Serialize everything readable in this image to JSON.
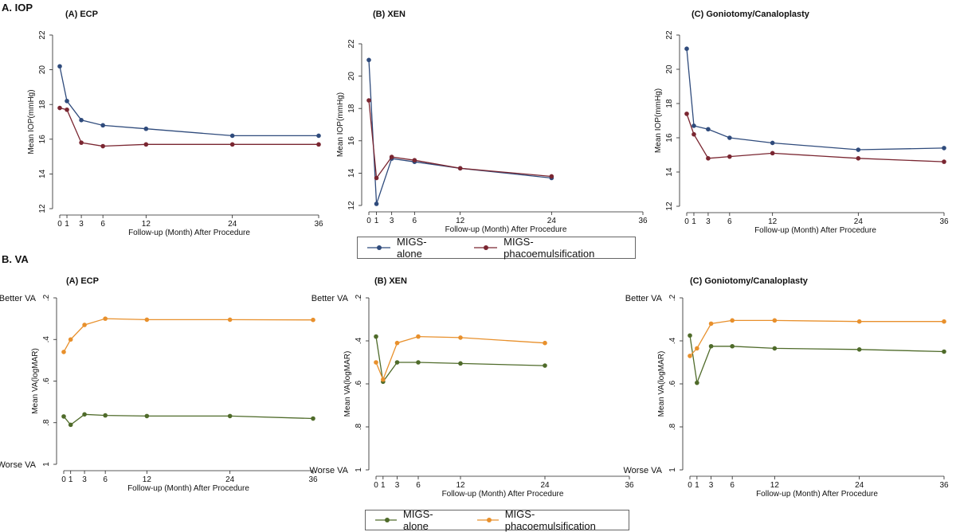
{
  "sections": {
    "iop": {
      "title": "A. IOP"
    },
    "va": {
      "title": "B. VA"
    }
  },
  "legends": {
    "iop": {
      "items": [
        {
          "label": "MIGS-alone",
          "color": "#2f4b7c"
        },
        {
          "label": "MIGS-phacoemulsification",
          "color": "#7a2631"
        }
      ]
    },
    "va": {
      "items": [
        {
          "label": "MIGS-alone",
          "color": "#4f6b2a"
        },
        {
          "label": "MIGS-phacoemulsification",
          "color": "#e8902c"
        }
      ]
    }
  },
  "chart_data": [
    {
      "id": "iop-ecp",
      "type": "line",
      "title": "(A) ECP",
      "xlabel": "Follow-up (Month) After Procedure",
      "ylabel": "Mean IOP(mmHg)",
      "x_ticks": [
        0,
        1,
        3,
        6,
        12,
        24,
        36
      ],
      "xlim": [
        0,
        36
      ],
      "y_ticks": [
        12,
        14,
        16,
        18,
        20,
        22
      ],
      "ylim": [
        12,
        22
      ],
      "y_reversed": false,
      "series": [
        {
          "name": "MIGS-alone",
          "color": "#2f4b7c",
          "x": [
            0,
            1,
            3,
            6,
            12,
            24,
            36
          ],
          "values": [
            20.2,
            18.2,
            17.1,
            16.8,
            16.6,
            16.2,
            16.2
          ]
        },
        {
          "name": "MIGS-phacoemulsification",
          "color": "#7a2631",
          "x": [
            0,
            1,
            3,
            6,
            12,
            24,
            36
          ],
          "values": [
            17.8,
            17.7,
            15.8,
            15.6,
            15.7,
            15.7,
            15.7
          ]
        }
      ]
    },
    {
      "id": "iop-xen",
      "type": "line",
      "title": "(B) XEN",
      "xlabel": "Follow-up (Month) After Procedure",
      "ylabel": "Mean IOP(mmHg)",
      "x_ticks": [
        0,
        1,
        3,
        6,
        12,
        24,
        36
      ],
      "xlim": [
        0,
        36
      ],
      "y_ticks": [
        12,
        14,
        16,
        18,
        20,
        22
      ],
      "ylim": [
        12,
        22
      ],
      "y_reversed": false,
      "series": [
        {
          "name": "MIGS-alone",
          "color": "#2f4b7c",
          "x": [
            0,
            1,
            3,
            6,
            12,
            24
          ],
          "values": [
            21.0,
            12.1,
            14.9,
            14.7,
            14.3,
            13.7
          ]
        },
        {
          "name": "MIGS-phacoemulsification",
          "color": "#7a2631",
          "x": [
            0,
            1,
            3,
            6,
            12,
            24
          ],
          "values": [
            18.5,
            13.7,
            15.0,
            14.8,
            14.3,
            13.8
          ]
        }
      ]
    },
    {
      "id": "iop-gon",
      "type": "line",
      "title": "(C) Goniotomy/Canaloplasty",
      "xlabel": "Follow-up (Month) After Procedure",
      "ylabel": "Mean IOP(mmHg)",
      "x_ticks": [
        0,
        1,
        3,
        6,
        12,
        24,
        36
      ],
      "xlim": [
        0,
        36
      ],
      "y_ticks": [
        12,
        14,
        16,
        18,
        20,
        22
      ],
      "ylim": [
        12,
        22
      ],
      "y_reversed": false,
      "series": [
        {
          "name": "MIGS-alone",
          "color": "#2f4b7c",
          "x": [
            0,
            1,
            3,
            6,
            12,
            24,
            36
          ],
          "values": [
            21.2,
            16.7,
            16.5,
            16.0,
            15.7,
            15.3,
            15.4
          ]
        },
        {
          "name": "MIGS-phacoemulsification",
          "color": "#7a2631",
          "x": [
            0,
            1,
            3,
            6,
            12,
            24,
            36
          ],
          "values": [
            17.4,
            16.2,
            14.8,
            14.9,
            15.1,
            14.8,
            14.6
          ]
        }
      ]
    },
    {
      "id": "va-ecp",
      "type": "line",
      "title": "(A) ECP",
      "xlabel": "Follow-up (Month) After Procedure",
      "ylabel": "Mean VA(logMAR)",
      "top_label": "Better VA",
      "bottom_label": "Worse VA",
      "x_ticks": [
        0,
        1,
        3,
        6,
        12,
        24,
        36
      ],
      "xlim": [
        0,
        36
      ],
      "y_ticks": [
        0.2,
        0.4,
        0.6,
        0.8,
        1.0
      ],
      "y_tick_labels": [
        ".2",
        ".4",
        ".6",
        ".8",
        "1"
      ],
      "ylim": [
        0.2,
        1.0
      ],
      "y_reversed": true,
      "series": [
        {
          "name": "MIGS-alone",
          "color": "#4f6b2a",
          "x": [
            0,
            1,
            3,
            6,
            12,
            24,
            36
          ],
          "values": [
            0.77,
            0.81,
            0.76,
            0.765,
            0.768,
            0.768,
            0.78
          ]
        },
        {
          "name": "MIGS-phacoemulsification",
          "color": "#e8902c",
          "x": [
            0,
            1,
            3,
            6,
            12,
            24,
            36
          ],
          "values": [
            0.46,
            0.4,
            0.33,
            0.3,
            0.305,
            0.305,
            0.306
          ]
        }
      ]
    },
    {
      "id": "va-xen",
      "type": "line",
      "title": "(B) XEN",
      "xlabel": "Follow-up (Month) After Procedure",
      "ylabel": "Mean VA(logMAR)",
      "top_label": "Better VA",
      "bottom_label": "Worse VA",
      "x_ticks": [
        0,
        1,
        3,
        6,
        12,
        24,
        36
      ],
      "xlim": [
        0,
        36
      ],
      "y_ticks": [
        0.2,
        0.4,
        0.6,
        0.8,
        1.0
      ],
      "y_tick_labels": [
        ".2",
        ".4",
        ".6",
        ".8",
        "1"
      ],
      "ylim": [
        0.2,
        1.0
      ],
      "y_reversed": true,
      "series": [
        {
          "name": "MIGS-alone",
          "color": "#4f6b2a",
          "x": [
            0,
            1,
            3,
            6,
            12,
            24
          ],
          "values": [
            0.38,
            0.59,
            0.5,
            0.5,
            0.505,
            0.515
          ]
        },
        {
          "name": "MIGS-phacoemulsification",
          "color": "#e8902c",
          "x": [
            0,
            1,
            3,
            6,
            12,
            24
          ],
          "values": [
            0.5,
            0.58,
            0.41,
            0.38,
            0.385,
            0.41
          ]
        }
      ]
    },
    {
      "id": "va-gon",
      "type": "line",
      "title": "(C) Goniotomy/Canaloplasty",
      "xlabel": "Follow-up (Month) After Procedure",
      "ylabel": "Mean VA(logMAR)",
      "top_label": "Better VA",
      "bottom_label": "Worse VA",
      "x_ticks": [
        0,
        1,
        3,
        6,
        12,
        24,
        36
      ],
      "xlim": [
        0,
        36
      ],
      "y_ticks": [
        0.2,
        0.4,
        0.6,
        0.8,
        1.0
      ],
      "y_tick_labels": [
        ".2",
        ".4",
        ".6",
        ".8",
        "1"
      ],
      "ylim": [
        0.2,
        1.0
      ],
      "y_reversed": true,
      "series": [
        {
          "name": "MIGS-alone",
          "color": "#4f6b2a",
          "x": [
            0,
            1,
            3,
            6,
            12,
            24,
            36
          ],
          "values": [
            0.375,
            0.595,
            0.425,
            0.425,
            0.435,
            0.44,
            0.45
          ]
        },
        {
          "name": "MIGS-phacoemulsification",
          "color": "#e8902c",
          "x": [
            0,
            1,
            3,
            6,
            12,
            24,
            36
          ],
          "values": [
            0.47,
            0.435,
            0.32,
            0.305,
            0.305,
            0.31,
            0.31
          ]
        }
      ]
    }
  ]
}
